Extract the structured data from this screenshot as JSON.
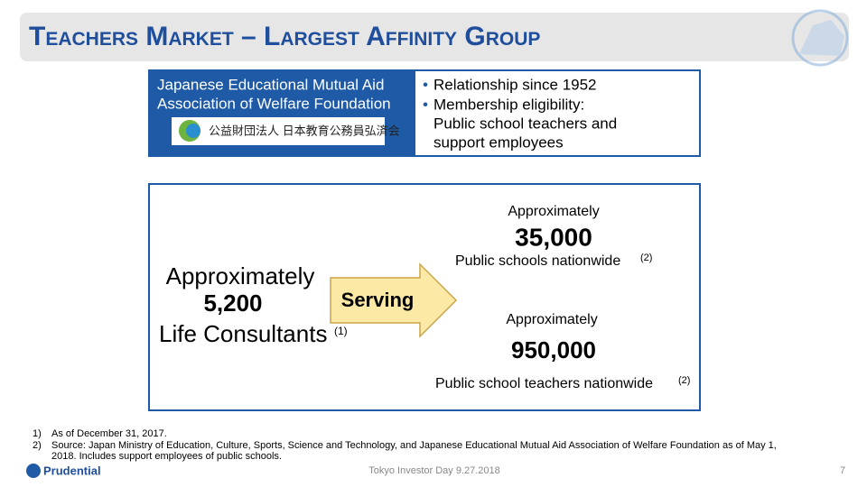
{
  "header": {
    "title": "Teachers Market – Largest Affinity Group"
  },
  "partner": {
    "name_lines": [
      "Japanese Educational Mutual Aid",
      "Association of Welfare Foundation"
    ],
    "logo_text": "公益財団法人 日本教育公務員弘済会",
    "bullets": [
      "Relationship since 1952",
      "Membership eligibility:"
    ],
    "eligibility_lines": [
      "Public school teachers and",
      "support employees"
    ]
  },
  "consultants": {
    "prefix": "Approximately",
    "count": "5,200",
    "label": "Life Consultants",
    "note": "(1)"
  },
  "arrow": {
    "label": "Serving"
  },
  "schools": {
    "prefix": "Approximately",
    "count": "35,000",
    "label": "Public schools nationwide",
    "note": "(2)"
  },
  "teachers": {
    "prefix": "Approximately",
    "count": "950,000",
    "label": "Public school teachers nationwide",
    "note": "(2)"
  },
  "footnotes": [
    {
      "marker": "1)",
      "lines": [
        "As of December 31, 2017."
      ]
    },
    {
      "marker": "2)",
      "lines": [
        "Source: Japan Ministry of Education, Culture, Sports, Science and Technology, and Japanese Educational Mutual Aid Association of Welfare Foundation as of May 1,",
        "2018. Includes support employees of public schools."
      ]
    }
  ],
  "footer": {
    "brand": "Prudential",
    "event": "Tokyo Investor Day 9.27.2018",
    "page": "7"
  }
}
